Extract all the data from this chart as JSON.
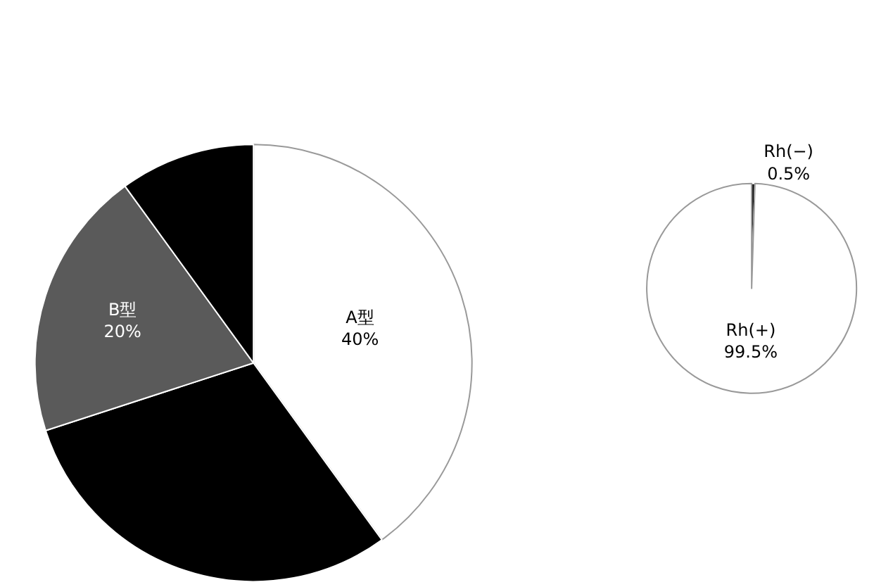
{
  "chart_data": [
    {
      "type": "pie",
      "categories": [
        "A型",
        null,
        "B型",
        null
      ],
      "values": [
        40,
        30,
        20,
        10
      ],
      "value_labels": [
        "40%",
        null,
        "20%",
        null
      ],
      "colors": [
        "#ffffff",
        "#000000",
        "#5a5a5a",
        "#000000"
      ]
    },
    {
      "type": "pie",
      "categories": [
        "Rh(−)",
        "Rh(+)"
      ],
      "values": [
        0.5,
        99.5
      ],
      "value_labels": [
        "0.5%",
        "99.5%"
      ],
      "colors": [
        "#000000",
        "#ffffff"
      ]
    }
  ]
}
